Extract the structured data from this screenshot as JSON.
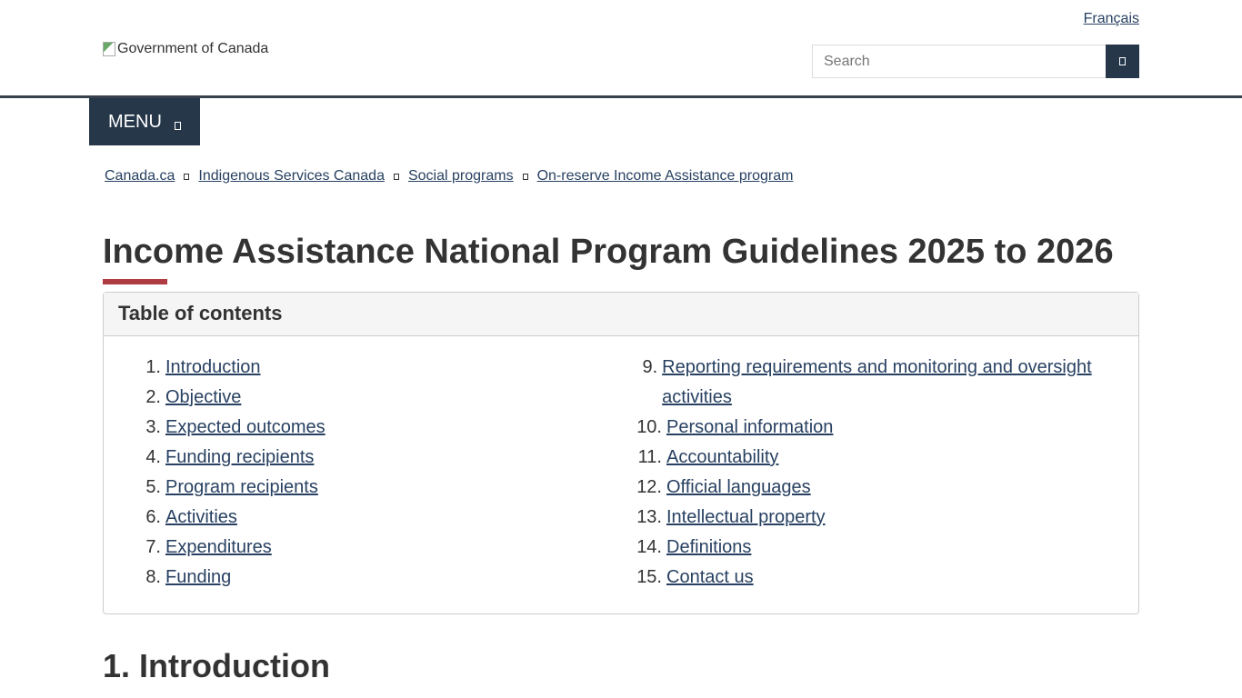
{
  "header": {
    "language_link": "Français",
    "logo_alt": "Government of Canada",
    "search_placeholder": "Search",
    "search_icon": "search-icon"
  },
  "menu": {
    "label": "MENU",
    "icon": "chevron-down-icon"
  },
  "breadcrumb": [
    "Canada.ca",
    "Indigenous Services Canada",
    "Social programs",
    "On-reserve Income Assistance program"
  ],
  "page_title": "Income Assistance National Program Guidelines 2025 to 2026",
  "toc": {
    "title": "Table of contents",
    "left": [
      {
        "n": "1.",
        "t": "Introduction"
      },
      {
        "n": "2.",
        "t": "Objective"
      },
      {
        "n": "3.",
        "t": "Expected outcomes"
      },
      {
        "n": "4.",
        "t": "Funding recipients"
      },
      {
        "n": "5.",
        "t": "Program recipients"
      },
      {
        "n": "6.",
        "t": "Activities"
      },
      {
        "n": "7.",
        "t": "Expenditures"
      },
      {
        "n": "8.",
        "t": "Funding"
      }
    ],
    "right": [
      {
        "n": "9.",
        "t": "Reporting requirements and monitoring and oversight activities"
      },
      {
        "n": "10.",
        "t": "Personal information"
      },
      {
        "n": "11.",
        "t": "Accountability"
      },
      {
        "n": "12.",
        "t": "Official languages"
      },
      {
        "n": "13.",
        "t": "Intellectual property"
      },
      {
        "n": "14.",
        "t": "Definitions"
      },
      {
        "n": "15.",
        "t": "Contact us"
      }
    ]
  },
  "section_heading": "1. Introduction",
  "colors": {
    "primary": "#26374a",
    "link": "#284162",
    "accent": "#af3c43"
  }
}
